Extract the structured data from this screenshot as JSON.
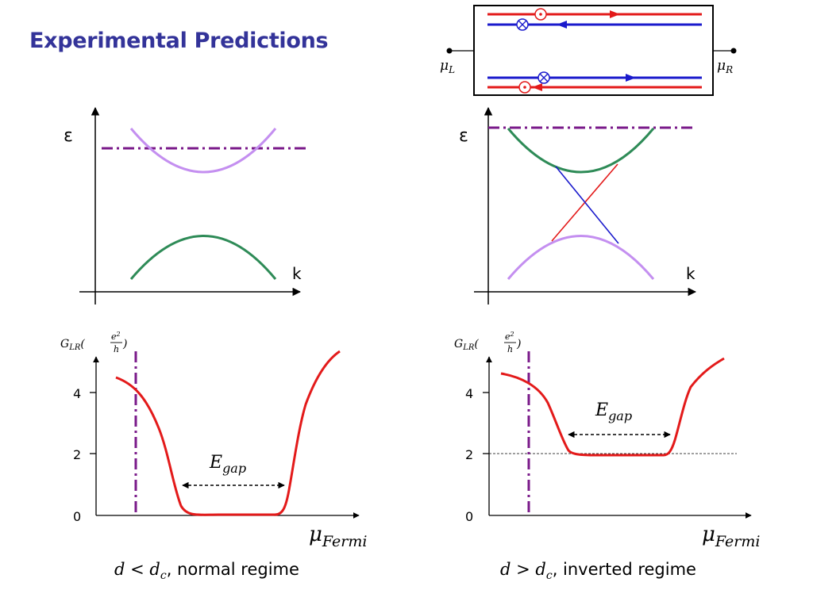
{
  "title": "Experimental Predictions",
  "colors": {
    "title": "#333399",
    "red": "#e31a1a",
    "blue": "#1a1acc",
    "green": "#2e8b57",
    "lavender": "#c48ff0",
    "purple": "#7a1a8a",
    "black": "#000000"
  },
  "schematic": {
    "left_terminal": "μ",
    "left_terminal_sub": "L",
    "right_terminal": "μ",
    "right_terminal_sub": "R"
  },
  "band_left": {
    "y_label": "ε",
    "x_label": "k"
  },
  "band_right": {
    "y_label": "ε",
    "x_label": "k"
  },
  "conductance_left": {
    "y_label_main": "G",
    "y_label_sub": "LR",
    "y_label_num": "e",
    "y_label_num_sup": "2",
    "y_label_den": "h",
    "ticks": [
      "4",
      "2",
      "0"
    ],
    "x_label_main": "μ",
    "x_label_sub": "Fermi",
    "gap_label_main": "E",
    "gap_label_sub": "gap",
    "caption_math": "d < d",
    "caption_math_sub": "c",
    "caption_text": ", normal regime"
  },
  "conductance_right": {
    "y_label_main": "G",
    "y_label_sub": "LR",
    "y_label_num": "e",
    "y_label_num_sup": "2",
    "y_label_den": "h",
    "ticks": [
      "4",
      "2",
      "0"
    ],
    "x_label_main": "μ",
    "x_label_sub": "Fermi",
    "gap_label_main": "E",
    "gap_label_sub": "gap",
    "caption_math": "d > d",
    "caption_math_sub": "c",
    "caption_text": ", inverted regime"
  }
}
